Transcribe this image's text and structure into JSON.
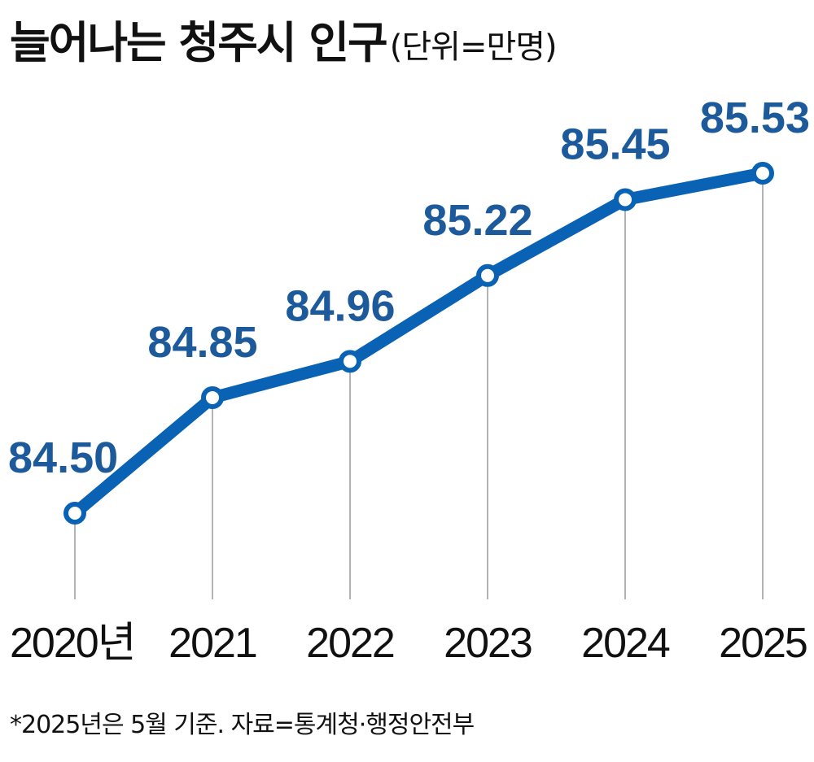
{
  "header": {
    "title": "늘어나는 청주시 인구",
    "unit": "(단위=만명)"
  },
  "footnote": "*2025년은 5월 기준. 자료=통계청·행정안전부",
  "chart_data": {
    "type": "line",
    "title": "늘어나는 청주시 인구",
    "subtitle": "(단위=만명)",
    "categories": [
      "2020년",
      "2021",
      "2022",
      "2023",
      "2024",
      "2025"
    ],
    "x": [
      2020,
      2021,
      2022,
      2023,
      2024,
      2025
    ],
    "series": [
      {
        "values": [
          84.5,
          84.85,
          84.96,
          85.22,
          85.45,
          85.53
        ],
        "labels": [
          "84.50",
          "84.85",
          "84.96",
          "85.22",
          "85.45",
          "85.53"
        ]
      }
    ],
    "grid": "vertical drop lines from each point",
    "legend": "none",
    "colors": {
      "line": "#0a62b4",
      "label": "#1d5a9c",
      "dropline": "#9a9a9a"
    }
  }
}
